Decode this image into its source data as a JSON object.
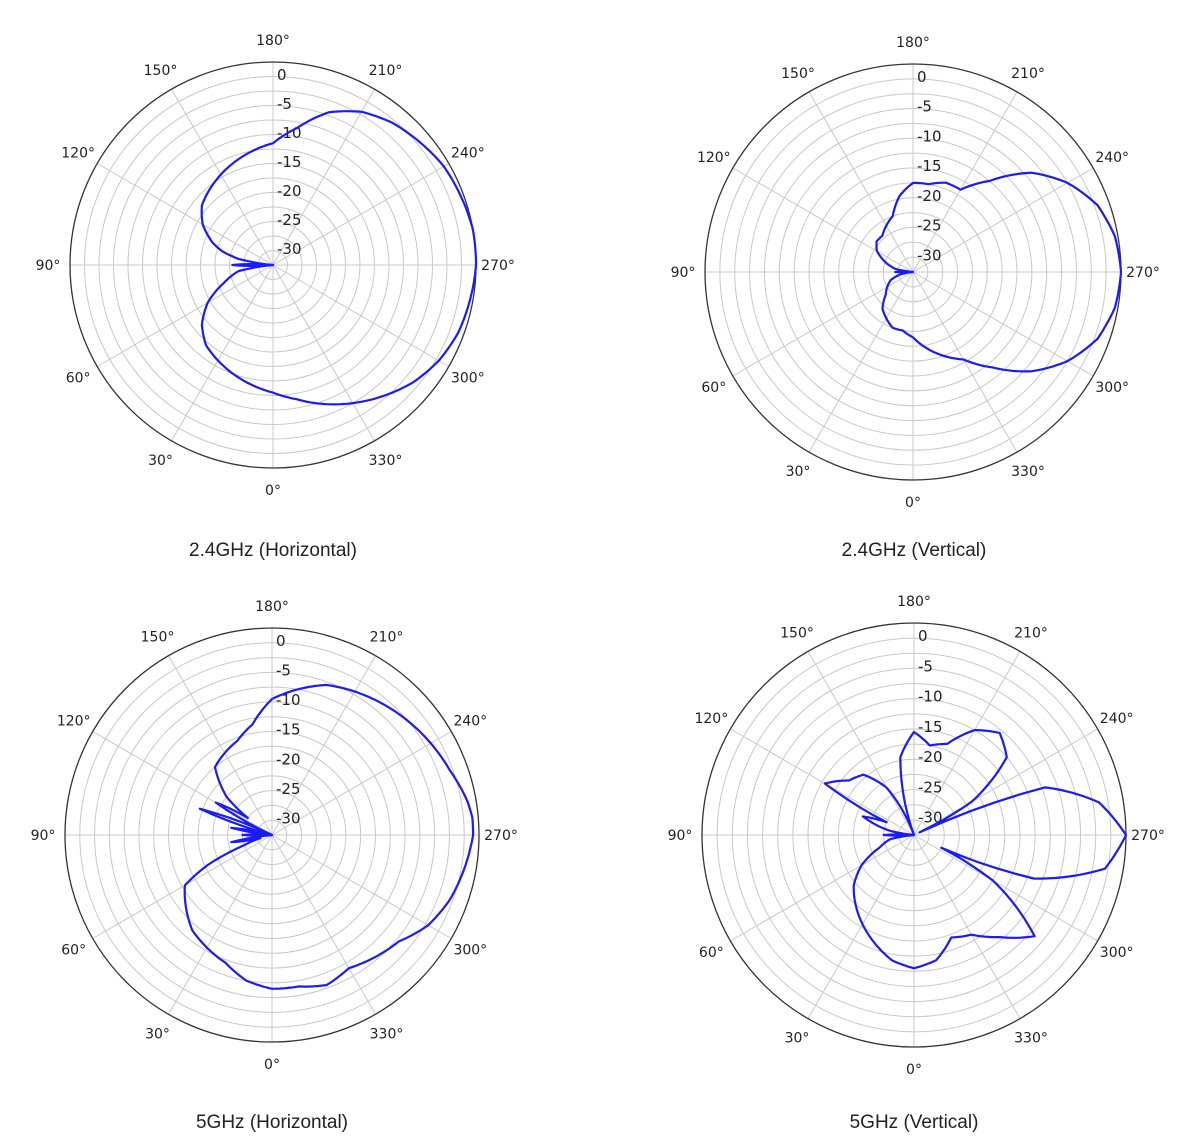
{
  "chart_data": [
    {
      "type": "polar",
      "title": "2.4GHz (Horizontal)",
      "unit": "dB",
      "rlim": [
        -35,
        0
      ],
      "radial_ticks": [
        "0",
        "-5",
        "-10",
        "-15",
        "-20",
        "-25",
        "-30"
      ],
      "angle_ticks": [
        "0°",
        "30°",
        "60°",
        "90°",
        "120°",
        "150°",
        "180°",
        "210°",
        "240°",
        "270°",
        "300°",
        "330°"
      ],
      "grid": true,
      "series": [
        {
          "color": "#1a1aff",
          "angle_deg": [
            0,
            10,
            20,
            30,
            40,
            50,
            60,
            70,
            80,
            85,
            90,
            95,
            100,
            105,
            110,
            120,
            130,
            140,
            150,
            160,
            170,
            180,
            190,
            200,
            210,
            220,
            230,
            240,
            250,
            260,
            270,
            280,
            290,
            300,
            310,
            320,
            330,
            340,
            350
          ],
          "gain_db": [
            -13,
            -14,
            -15,
            -16,
            -17,
            -19,
            -22,
            -26,
            -29,
            -35,
            -28,
            -35,
            -29,
            -26,
            -24,
            -21,
            -19,
            -18,
            -17,
            -16,
            -15,
            -14,
            -11,
            -7,
            -4.5,
            -3,
            -2,
            -1,
            -0.5,
            0,
            0,
            -0.5,
            -1,
            -2,
            -3.5,
            -5.5,
            -7.5,
            -9.5,
            -11.5
          ]
        }
      ]
    },
    {
      "type": "polar",
      "title": "2.4GHz (Vertical)",
      "unit": "dB",
      "rlim": [
        -35,
        0
      ],
      "radial_ticks": [
        "0",
        "-5",
        "-10",
        "-15",
        "-20",
        "-25",
        "-30"
      ],
      "angle_ticks": [
        "0°",
        "30°",
        "60°",
        "90°",
        "120°",
        "150°",
        "180°",
        "210°",
        "240°",
        "270°",
        "300°",
        "330°"
      ],
      "grid": true,
      "series": [
        {
          "color": "#1a1aff",
          "angle_deg": [
            0,
            10,
            20,
            30,
            40,
            50,
            60,
            70,
            80,
            85,
            90,
            95,
            100,
            110,
            120,
            130,
            140,
            150,
            160,
            170,
            180,
            190,
            200,
            210,
            220,
            230,
            240,
            250,
            260,
            270,
            280,
            290,
            300,
            310,
            320,
            330,
            340,
            350
          ],
          "gain_db": [
            -24,
            -25,
            -25,
            -26,
            -27,
            -29,
            -30,
            -31,
            -33,
            -35,
            -32,
            -35,
            -32,
            -30,
            -28,
            -27,
            -27,
            -26,
            -25,
            -22,
            -20,
            -20,
            -19,
            -19,
            -15,
            -9,
            -5,
            -2,
            -0.5,
            0,
            -0.5,
            -2,
            -5,
            -9,
            -14,
            -18,
            -20,
            -22
          ]
        }
      ]
    },
    {
      "type": "polar",
      "title": "5GHz (Horizontal)",
      "unit": "dB",
      "rlim": [
        -35,
        0
      ],
      "radial_ticks": [
        "0",
        "-5",
        "-10",
        "-15",
        "-20",
        "-25",
        "-30"
      ],
      "angle_ticks": [
        "0°",
        "30°",
        "60°",
        "90°",
        "120°",
        "150°",
        "180°",
        "210°",
        "240°",
        "270°",
        "300°",
        "330°"
      ],
      "grid": true,
      "series": [
        {
          "color": "#1a1aff",
          "angle_deg": [
            0,
            10,
            20,
            30,
            40,
            50,
            60,
            65,
            70,
            75,
            80,
            85,
            90,
            95,
            100,
            105,
            110,
            115,
            120,
            125,
            130,
            140,
            150,
            160,
            170,
            180,
            190,
            200,
            210,
            220,
            230,
            240,
            250,
            260,
            265,
            270,
            275,
            280,
            290,
            300,
            310,
            320,
            330,
            340,
            350
          ],
          "gain_db": [
            -9,
            -10,
            -12,
            -13,
            -14,
            -16,
            -18,
            -23,
            -30,
            -33,
            -28,
            -35,
            -30,
            -35,
            -28,
            -35,
            -22,
            -35,
            -24,
            -30,
            -25,
            -20,
            -19,
            -18,
            -16,
            -12,
            -10,
            -8,
            -7,
            -6,
            -5,
            -4,
            -3,
            -1.5,
            -1,
            -1,
            -1.5,
            -2,
            -3,
            -4.5,
            -7,
            -8,
            -9,
            -8,
            -9
          ]
        }
      ]
    },
    {
      "type": "polar",
      "title": "5GHz (Vertical)",
      "unit": "dB",
      "rlim": [
        -35,
        0
      ],
      "radial_ticks": [
        "0",
        "-5",
        "-10",
        "-15",
        "-20",
        "-25",
        "-30"
      ],
      "angle_ticks": [
        "0°",
        "30°",
        "60°",
        "90°",
        "120°",
        "150°",
        "180°",
        "210°",
        "240°",
        "270°",
        "300°",
        "330°"
      ],
      "grid": true,
      "series": [
        {
          "color": "#1a1aff",
          "angle_deg": [
            0,
            10,
            20,
            30,
            40,
            50,
            60,
            70,
            80,
            85,
            90,
            95,
            100,
            110,
            115,
            120,
            130,
            140,
            150,
            160,
            170,
            180,
            190,
            200,
            210,
            220,
            230,
            240,
            245,
            250,
            260,
            270,
            280,
            290,
            295,
            300,
            310,
            320,
            330,
            340,
            350
          ],
          "gain_db": [
            -13,
            -14,
            -16,
            -18,
            -20,
            -22,
            -25,
            -29,
            -31,
            -35,
            -30,
            -35,
            -31,
            -26,
            -30,
            -18,
            -21,
            -22,
            -26,
            -35,
            -22,
            -18,
            -20,
            -19,
            -15,
            -13,
            -15,
            -24,
            -34,
            -12,
            -4,
            0,
            -3,
            -14,
            -30,
            -20,
            -9,
            -13,
            -16,
            -17,
            -14
          ]
        }
      ]
    }
  ]
}
